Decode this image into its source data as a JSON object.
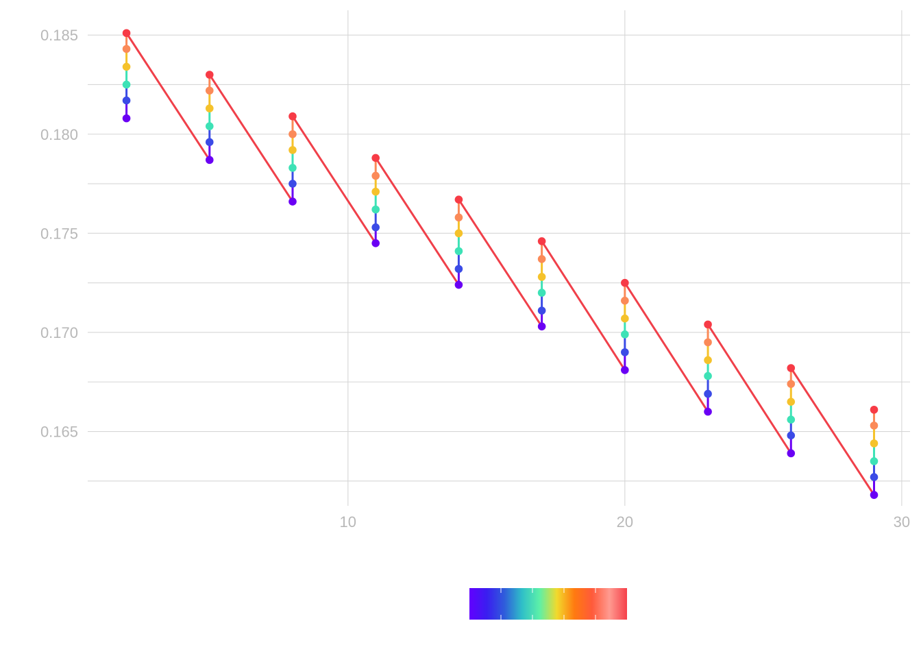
{
  "chart_data": {
    "type": "line",
    "title": "",
    "xlabel": "",
    "ylabel": "",
    "xlim": [
      0.6,
      30.3
    ],
    "ylim": [
      0.16125,
      0.18625
    ],
    "x_ticks": [
      10,
      20,
      30
    ],
    "x_tick_labels": [
      "10",
      "20",
      "30"
    ],
    "y_ticks": [
      0.165,
      0.17,
      0.175,
      0.18,
      0.185
    ],
    "y_tick_labels": [
      "0.165",
      "0.170",
      "0.175",
      "0.180",
      "0.185"
    ],
    "grid": true,
    "x": [
      2,
      5,
      8,
      11,
      14,
      17,
      20,
      23,
      26,
      29
    ],
    "series": [
      {
        "values": [
          0.1808,
          0.1787,
          0.1766,
          0.1745,
          0.1724,
          0.1703,
          0.1681,
          0.166,
          0.1639,
          0.1618
        ]
      },
      {
        "values": [
          0.1817,
          0.1796,
          0.1775,
          0.1753,
          0.1732,
          0.1711,
          0.169,
          0.1669,
          0.1648,
          0.1627
        ]
      },
      {
        "values": [
          0.1825,
          0.1804,
          0.1783,
          0.1762,
          0.1741,
          0.172,
          0.1699,
          0.1678,
          0.1656,
          0.1635
        ]
      },
      {
        "values": [
          0.1834,
          0.1813,
          0.1792,
          0.1771,
          0.175,
          0.1728,
          0.1707,
          0.1686,
          0.1665,
          0.1644
        ]
      },
      {
        "values": [
          0.1843,
          0.1822,
          0.18,
          0.1779,
          0.1758,
          0.1737,
          0.1716,
          0.1695,
          0.1674,
          0.1653
        ]
      },
      {
        "values": [
          0.1851,
          0.183,
          0.1809,
          0.1788,
          0.1767,
          0.1746,
          0.1725,
          0.1704,
          0.1682,
          0.1661
        ]
      }
    ],
    "colors": [
      "#6a00f4",
      "#3b4be6",
      "#3de2b6",
      "#f5c22b",
      "#fb8a58",
      "#f73b46"
    ],
    "connector_color": "#f0404a",
    "colorbar": {
      "position": "bottom-center",
      "stops": [
        "#6200ff",
        "#3a1ef0",
        "#2f5ddb",
        "#2fbfc8",
        "#5cf0a8",
        "#f2d92c",
        "#ff7a10",
        "#ff5a3a",
        "#ff9a90",
        "#f5404a"
      ]
    }
  }
}
